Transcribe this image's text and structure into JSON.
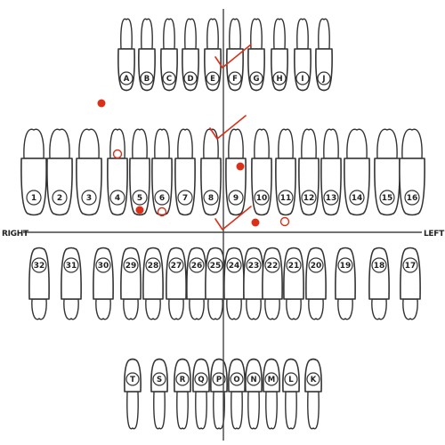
{
  "labels": {
    "right": "RIGHT",
    "left": "LEFT"
  },
  "colors": {
    "mark": "#d9301a",
    "outline": "#333333"
  },
  "upper_primary": [
    "A",
    "B",
    "C",
    "D",
    "E",
    "F",
    "G",
    "H",
    "I",
    "J"
  ],
  "upper_permanent": [
    "1",
    "2",
    "3",
    "4",
    "5",
    "6",
    "7",
    "8",
    "9",
    "10",
    "11",
    "12",
    "13",
    "14",
    "15",
    "16"
  ],
  "lower_permanent": [
    "32",
    "31",
    "30",
    "29",
    "28",
    "27",
    "26",
    "25",
    "24",
    "23",
    "22",
    "21",
    "20",
    "19",
    "18",
    "17"
  ],
  "lower_primary": [
    "T",
    "S",
    "R",
    "Q",
    "P",
    "O",
    "N",
    "M",
    "L",
    "K"
  ],
  "marks": [
    {
      "type": "check",
      "tooth": "E/F"
    },
    {
      "type": "check",
      "tooth": "8/9"
    },
    {
      "type": "check",
      "tooth": "25/24"
    },
    {
      "type": "filled",
      "tooth": "upper-right-margin"
    },
    {
      "type": "open",
      "tooth": "4"
    },
    {
      "type": "filled",
      "tooth": "5"
    },
    {
      "type": "open",
      "tooth": "6"
    },
    {
      "type": "filled",
      "tooth": "9"
    },
    {
      "type": "filled",
      "tooth": "10"
    },
    {
      "type": "open",
      "tooth": "11"
    }
  ]
}
